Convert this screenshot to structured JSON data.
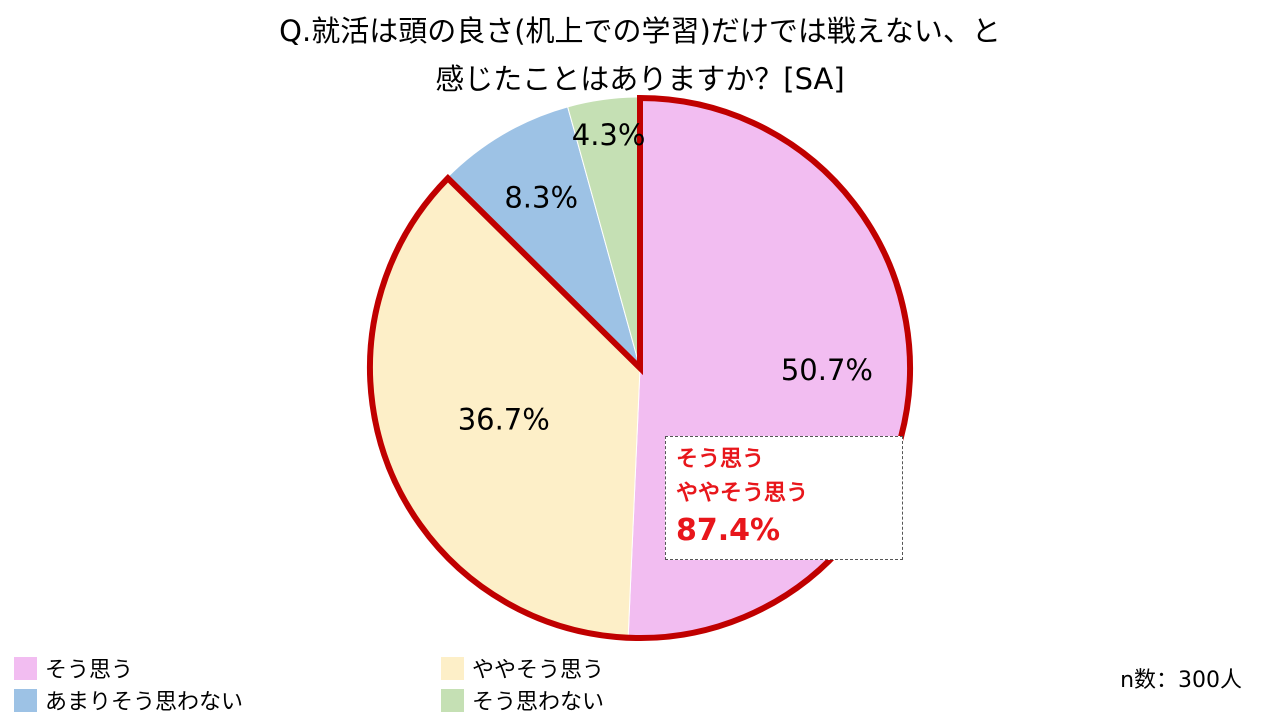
{
  "title_line1": "Q.就活は頭の良さ(机上での学習)だけでは戦えない、と",
  "title_line2": "感じたことはありますか？[SA]",
  "chart_data": {
    "type": "pie",
    "title": "Q.就活は頭の良さ(机上での学習)だけでは戦えない、と感じたことはありますか？[SA]",
    "slices": [
      {
        "label": "そう思う",
        "value": 50.7,
        "value_label": "50.7%",
        "color": "#f2bdf1"
      },
      {
        "label": "ややそう思う",
        "value": 36.7,
        "value_label": "36.7%",
        "color": "#fdefc8"
      },
      {
        "label": "あまりそう思わない",
        "value": 8.3,
        "value_label": "8.3%",
        "color": "#9dc2e5"
      },
      {
        "label": "そう思わない",
        "value": 4.3,
        "value_label": "4.3%",
        "color": "#c5e0b4"
      }
    ],
    "start": "12 o'clock",
    "direction": "clockwise",
    "highlight": {
      "slices": [
        "そう思う",
        "ややそう思う"
      ],
      "outline_color": "#c00000",
      "lines": [
        "そう思う",
        "ややそう思う"
      ],
      "total": "87.4%",
      "text_color": "#e8161b"
    },
    "legend": {
      "placement": "bottom",
      "items": [
        "そう思う",
        "ややそう思う",
        "あまりそう思わない",
        "そう思わない"
      ]
    }
  },
  "sample_size": "n数：300人"
}
